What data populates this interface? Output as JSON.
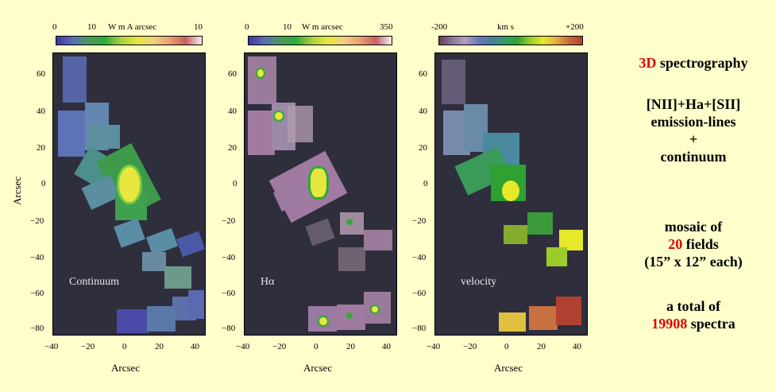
{
  "panels": [
    {
      "key": "continuum",
      "colorbar": {
        "left": "0",
        "mid": "10",
        "units": "W m  A  arcsec",
        "right": "10"
      },
      "inset_label": "Continuum",
      "colors": [
        "#3a3a99",
        "#5a6bb8",
        "#5c8fa0",
        "#3c9a4a",
        "#2faa3a",
        "#7fcc3f",
        "#e7e73f",
        "#f0d080",
        "#e9a070",
        "#c86060",
        "#e8d0d0"
      ]
    },
    {
      "key": "halpha",
      "colorbar": {
        "left": "0",
        "mid": "10",
        "units": "W m  arcsec",
        "right": "350"
      },
      "inset_label": "Hα",
      "colors": [
        "#3a3a99",
        "#5a6bb8",
        "#5c8fa0",
        "#3c9a4a",
        "#2faa3a",
        "#7fcc3f",
        "#e7e73f",
        "#f0d080",
        "#e9a070",
        "#c86060",
        "#e8d0d0"
      ]
    },
    {
      "key": "velocity",
      "colorbar": {
        "left": "-200",
        "mid": "km s",
        "units": "",
        "right": "+200"
      },
      "inset_label": "velocity",
      "colors": [
        "#6a3a5a",
        "#8a7a9a",
        "#b0a0c0",
        "#6a7ab0",
        "#4a7a9a",
        "#3a9a6a",
        "#2fa032",
        "#9ccc2a",
        "#e8e82a",
        "#e0b040",
        "#c86a3a",
        "#b04030"
      ]
    }
  ],
  "axes": {
    "x_ticks": [
      "−40",
      "−20",
      "0",
      "20",
      "40"
    ],
    "y_ticks": [
      "60",
      "40",
      "20",
      "0",
      "−20",
      "−40",
      "−60",
      "−80"
    ],
    "x_title": "Arcsec",
    "y_title": "Arcsec"
  },
  "side": {
    "line1_red": "3D",
    "line1_rest": " spectrography",
    "line2": "[NII]+Ha+[SII]",
    "line3": "emission-lines",
    "line4": "+",
    "line5": "continuum",
    "line6": "mosaic of",
    "line7_red": "20",
    "line7_rest": " fields",
    "line8": "(15” x 12” each)",
    "line9": "a total of",
    "line10_red": "19908",
    "line10_rest": " spectra"
  }
}
